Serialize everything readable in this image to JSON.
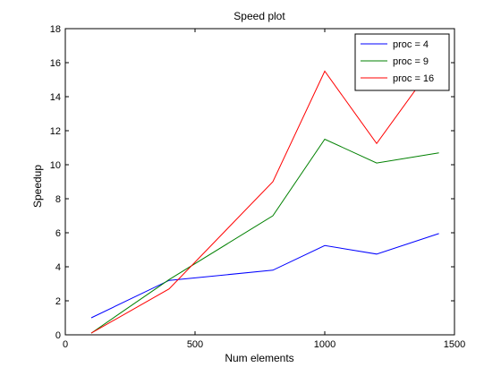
{
  "chart_data": {
    "type": "line",
    "title": "Speed plot",
    "xlabel": "Num elements",
    "ylabel": "Speedup",
    "xlim": [
      0,
      1500
    ],
    "ylim": [
      0,
      18
    ],
    "xticks": [
      0,
      500,
      1000,
      1500
    ],
    "yticks": [
      0,
      2,
      4,
      6,
      8,
      10,
      12,
      14,
      16,
      18
    ],
    "grid": false,
    "legend_position": "top-right",
    "series": [
      {
        "name": "proc = 4",
        "color": "#0000ff",
        "x": [
          100,
          400,
          800,
          1000,
          1200,
          1440
        ],
        "y": [
          1.0,
          3.2,
          3.8,
          5.25,
          4.75,
          5.95
        ]
      },
      {
        "name": "proc = 9",
        "color": "#008000",
        "x": [
          100,
          400,
          800,
          1000,
          1200,
          1440
        ],
        "y": [
          0.1,
          3.25,
          7.0,
          11.5,
          10.1,
          10.7
        ]
      },
      {
        "name": "proc = 16",
        "color": "#ff0000",
        "x": [
          100,
          400,
          800,
          1000,
          1200,
          1440
        ],
        "y": [
          0.1,
          2.7,
          9.0,
          15.5,
          11.25,
          16.3
        ]
      }
    ]
  }
}
